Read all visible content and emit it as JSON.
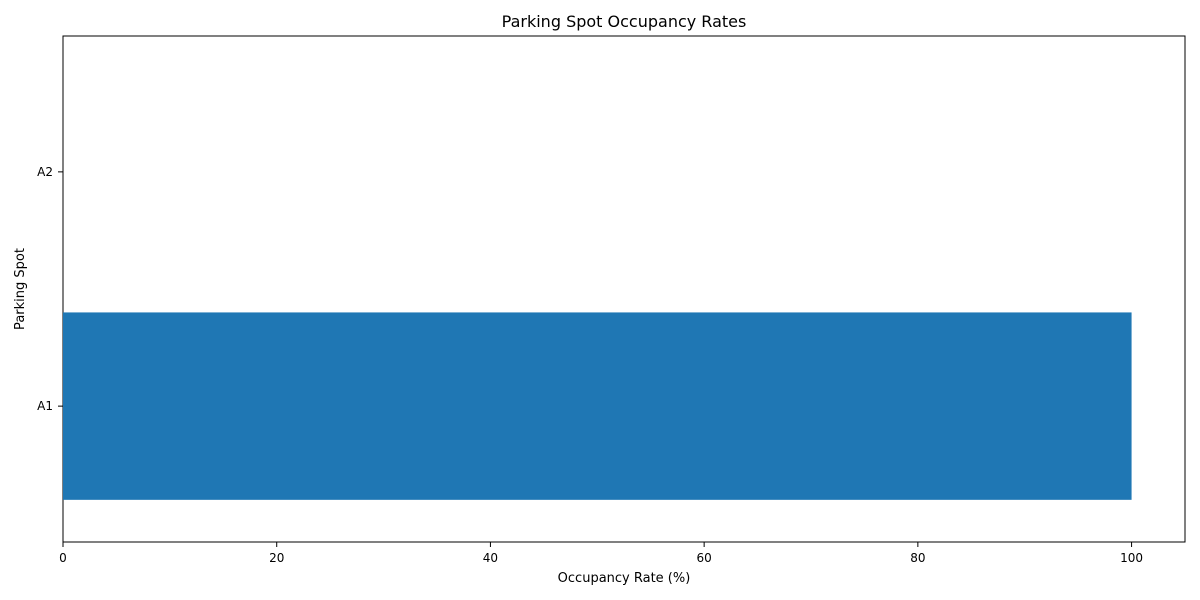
{
  "chart_data": {
    "type": "bar",
    "orientation": "horizontal",
    "title": "Parking Spot Occupancy Rates",
    "xlabel": "Occupancy Rate (%)",
    "ylabel": "Parking Spot",
    "categories": [
      "A1",
      "A2"
    ],
    "values": [
      100,
      0
    ],
    "xlim": [
      0,
      105
    ],
    "xticks": [
      0,
      20,
      40,
      60,
      80,
      100
    ],
    "grid": false,
    "legend": "none",
    "bar_color": "#1f77b4"
  }
}
